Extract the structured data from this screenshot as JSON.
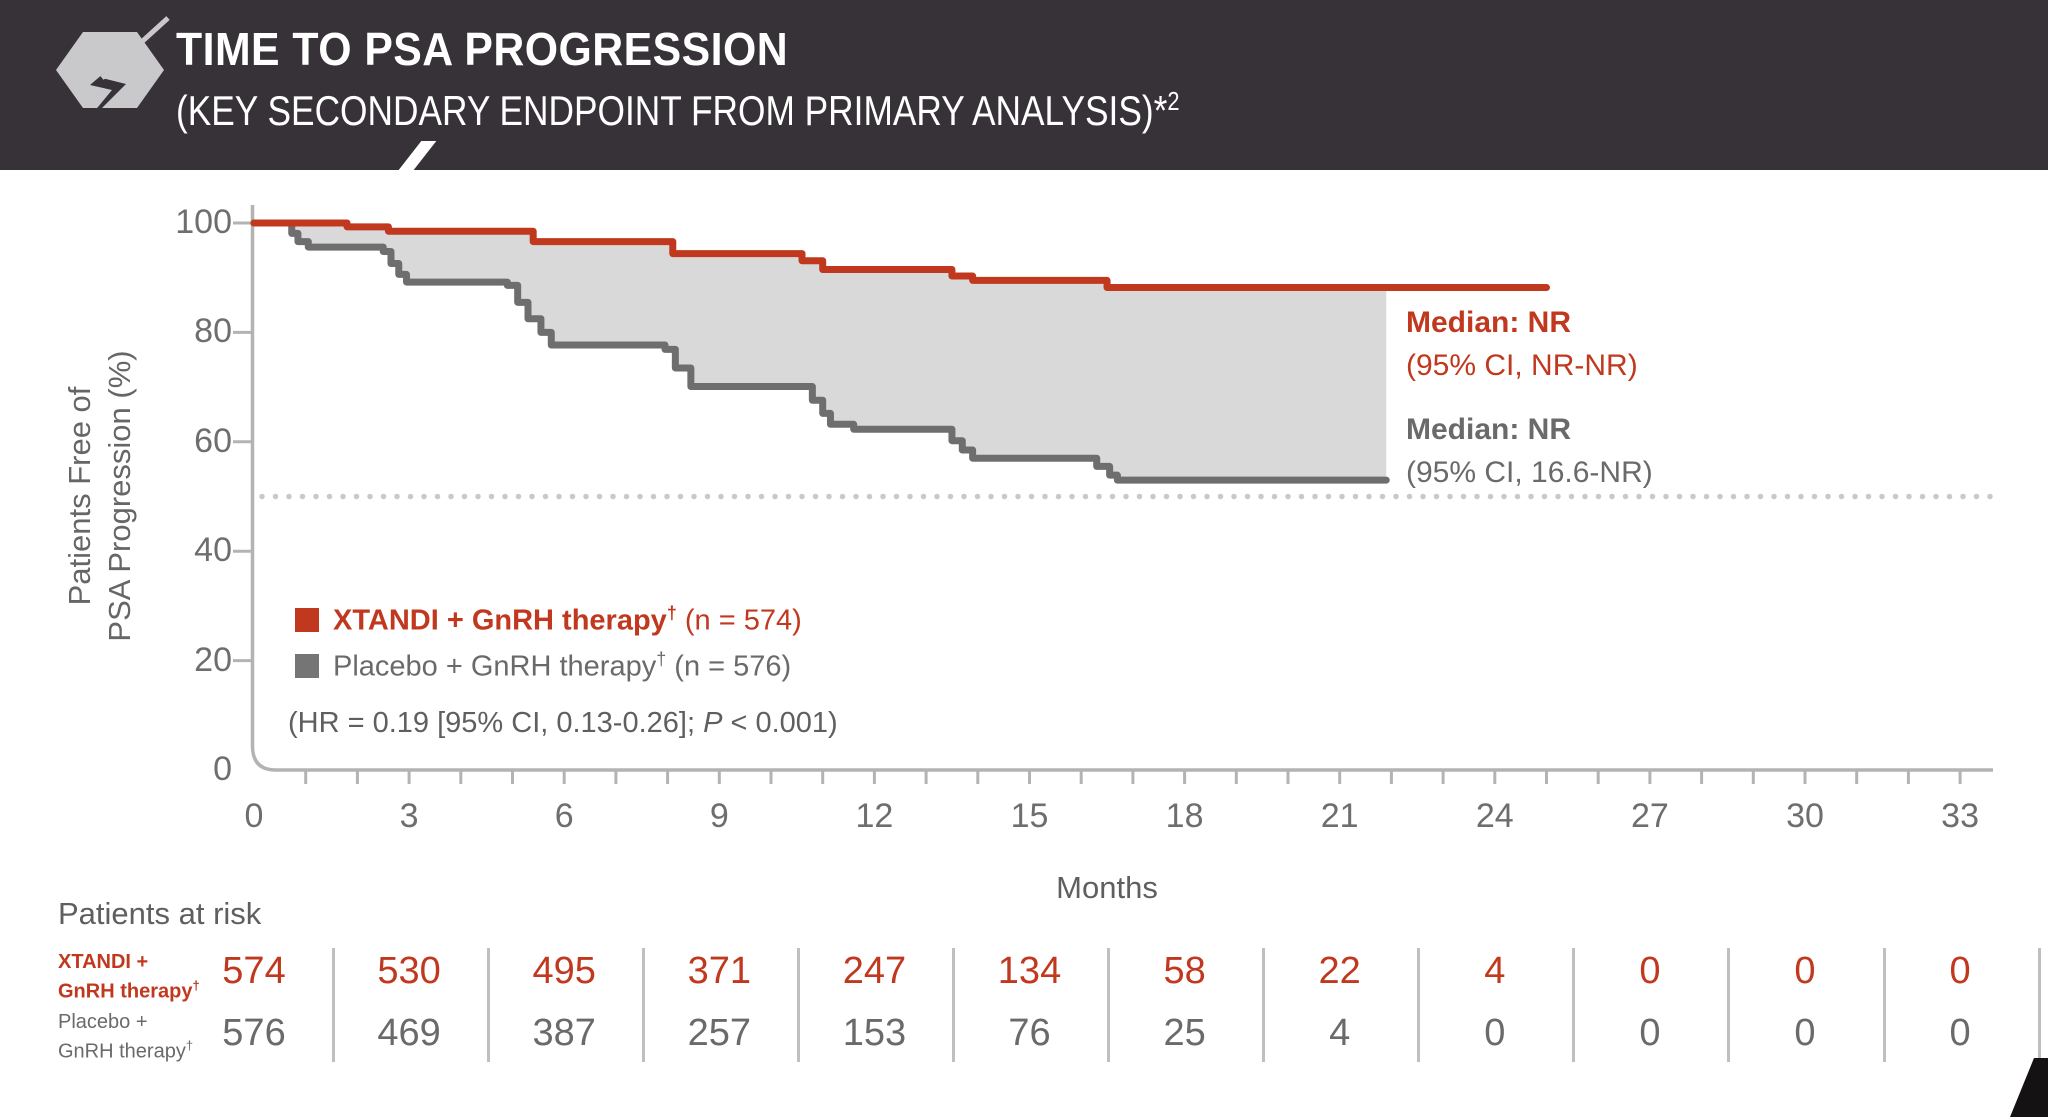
{
  "header": {
    "icon": "lightning-bolt-hexagon-icon",
    "title_line1": "TIME TO PSA PROGRESSION",
    "title_line2": "(KEY SECONDARY ENDPOINT FROM PRIMARY ANALYSIS)*",
    "title_line2_superscript": "2"
  },
  "colors": {
    "header_bg": "#363237",
    "xtandi_red": "#c0391f",
    "placebo_gray": "#6e6e6e",
    "area_fill": "#d9d9d9",
    "axis_gray": "#b3b3b3",
    "dotted_line": "#c9c9c9",
    "label_gray": "#5f5f5f"
  },
  "chart_data": {
    "type": "line",
    "subtype": "kaplan-meier-step",
    "xlabel": "Months",
    "ylabel_line1": "Patients Free of",
    "ylabel_line2": "PSA Progression (%)",
    "xlim": [
      0,
      33
    ],
    "ylim": [
      0,
      100
    ],
    "xticks": [
      0,
      3,
      6,
      9,
      12,
      15,
      18,
      21,
      24,
      27,
      30,
      33
    ],
    "yticks": [
      0,
      20,
      40,
      60,
      80,
      100
    ],
    "reference_line_y": 50,
    "grid": false,
    "legend_position": "inside-lower-left",
    "series": [
      {
        "name": "XTANDI + GnRH therapy",
        "n": 574,
        "color": "#c0391f",
        "median_label": "Median: NR",
        "median_ci": "(95% CI, NR-NR)",
        "end_month": 25.0,
        "points": [
          [
            0,
            100
          ],
          [
            1.8,
            99.3
          ],
          [
            2.6,
            98.5
          ],
          [
            5.4,
            96.6
          ],
          [
            8.1,
            94.4
          ],
          [
            10.6,
            93.1
          ],
          [
            11.0,
            91.5
          ],
          [
            13.5,
            90.3
          ],
          [
            13.9,
            89.5
          ],
          [
            16.5,
            88.2
          ]
        ]
      },
      {
        "name": "Placebo + GnRH therapy",
        "n": 576,
        "color": "#6e6e6e",
        "median_label": "Median: NR",
        "median_ci": "(95% CI, 16.6-NR)",
        "end_month": 21.9,
        "points": [
          [
            0,
            100
          ],
          [
            0.73,
            98.1
          ],
          [
            0.85,
            96.6
          ],
          [
            1.05,
            95.6
          ],
          [
            2.5,
            94.8
          ],
          [
            2.65,
            92.6
          ],
          [
            2.8,
            90.6
          ],
          [
            2.95,
            89.2
          ],
          [
            4.9,
            88.6
          ],
          [
            5.1,
            85.5
          ],
          [
            5.3,
            82.5
          ],
          [
            5.55,
            80.0
          ],
          [
            5.75,
            77.7
          ],
          [
            7.95,
            76.9
          ],
          [
            8.15,
            73.5
          ],
          [
            8.45,
            70.1
          ],
          [
            10.8,
            67.6
          ],
          [
            11.0,
            65.2
          ],
          [
            11.15,
            63.2
          ],
          [
            11.6,
            62.3
          ],
          [
            13.5,
            60.2
          ],
          [
            13.7,
            58.5
          ],
          [
            13.9,
            57.0
          ],
          [
            16.3,
            55.5
          ],
          [
            16.55,
            53.9
          ],
          [
            16.7,
            53.0
          ]
        ]
      }
    ],
    "hr_annotation": {
      "pre": "(HR = 0.19 [95% CI, 0.13-0.26]; ",
      "italic": "P",
      "post": " < 0.001)"
    }
  },
  "legend": {
    "items": [
      {
        "label": "XTANDI + GnRH therapy",
        "sup": "†",
        "suffix": " (n = 574)",
        "color": "#c0391f",
        "bold": true
      },
      {
        "label": "Placebo + GnRH therapy",
        "sup": "†",
        "suffix": " (n = 576)",
        "color": "#757575",
        "bold": false
      }
    ]
  },
  "risk_table": {
    "title": "Patients at risk",
    "rows": [
      {
        "label_line1": "XTANDI +",
        "label_line2": "GnRH therapy",
        "label_sup": "†",
        "color": "red",
        "values": [
          574,
          530,
          495,
          371,
          247,
          134,
          58,
          22,
          4,
          0,
          0,
          0
        ]
      },
      {
        "label_line1": "Placebo +",
        "label_line2": "GnRH therapy",
        "label_sup": "†",
        "color": "gray",
        "values": [
          576,
          469,
          387,
          257,
          153,
          76,
          25,
          4,
          0,
          0,
          0,
          0
        ]
      }
    ]
  }
}
